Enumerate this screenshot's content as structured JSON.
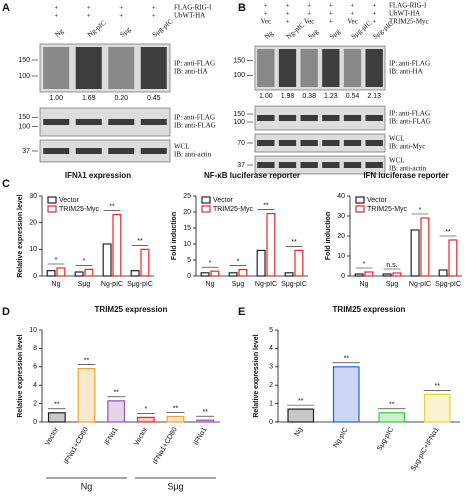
{
  "panel_a": {
    "letter": "A",
    "rows": [
      {
        "label": "FLAG-RIG-I",
        "marks": [
          "+",
          "+",
          "+",
          "+"
        ]
      },
      {
        "label": "UbWT-HA",
        "marks": [
          "+",
          "+",
          "+",
          "+"
        ]
      }
    ],
    "lanes": [
      "Ng",
      "Ng-pIC",
      "Sμg",
      "Sμg-pIC"
    ],
    "blots": [
      {
        "mw": [
          150,
          100
        ],
        "labels": [
          "IP: anti-FLAG",
          "IB: anti-HA"
        ],
        "quant": [
          "1.00",
          "1.69",
          "0.20",
          "0.45"
        ]
      },
      {
        "mw": [
          150,
          100
        ],
        "labels": [
          "IP: anti-FLAG",
          "IB: anti-FLAG"
        ]
      },
      {
        "mw": [
          37
        ],
        "labels": [
          "WCL",
          "IB: anti-actin"
        ]
      }
    ]
  },
  "panel_b": {
    "letter": "B",
    "rows": [
      {
        "label": "FLAG-RIG-I",
        "marks": [
          "+",
          "+",
          "+",
          "+",
          "+",
          "+"
        ]
      },
      {
        "label": "UbWT-HA",
        "marks": [
          "+",
          "+",
          "+",
          "+",
          "+",
          "+"
        ]
      },
      {
        "label": "TRIM25-Myc",
        "marks": [
          "Vec",
          "+",
          "Vec",
          "+",
          "Vec",
          "+"
        ]
      }
    ],
    "lanes": [
      "Ng",
      "Ng-pIC",
      "Sμg",
      "Sμg",
      "Sμg-pIC",
      "Sμg-pIC"
    ],
    "blots": [
      {
        "mw": [
          150,
          100
        ],
        "labels": [
          "IP: anti-FLAG",
          "IB: anti-HA"
        ],
        "quant": [
          "1.00",
          "1.98",
          "0.38",
          "1.23",
          "0.54",
          "2.13"
        ]
      },
      {
        "mw": [
          150,
          100
        ],
        "labels": [
          "IP: anti-FLAG",
          "IB: anti-FLAG"
        ]
      },
      {
        "mw": [
          70
        ],
        "labels": [
          "WCL",
          "IB: anti-Myc"
        ]
      },
      {
        "mw": [
          37
        ],
        "labels": [
          "WCL",
          "IB: anti-actin"
        ]
      }
    ]
  },
  "letters": [
    "C",
    "D",
    "E"
  ],
  "chart_data": [
    {
      "type": "bar",
      "title": "IFNλ1 expression",
      "y_label": "Relative expression level",
      "categories": [
        "Ng",
        "Sμg",
        "Ng-pIC",
        "Sμg-pIC"
      ],
      "series": [
        {
          "name": "Vector",
          "color": "#222222",
          "values": [
            2,
            1.5,
            12,
            2
          ]
        },
        {
          "name": "TRIM25-Myc",
          "color": "#e8262b",
          "values": [
            3,
            2.5,
            23,
            10
          ]
        }
      ],
      "significance": [
        "*",
        "*",
        "**",
        "**"
      ],
      "ylim": [
        0,
        30
      ],
      "yticks": [
        0,
        10,
        20,
        30
      ]
    },
    {
      "type": "bar",
      "title": "NF-κB luciferase reporter",
      "y_label": "Fold induction",
      "categories": [
        "Ng",
        "Sμg",
        "Ng-pIC",
        "Sμg-pIC"
      ],
      "series": [
        {
          "name": "Vector",
          "color": "#222222",
          "values": [
            1,
            1,
            8,
            1
          ]
        },
        {
          "name": "TRIM25-Myc",
          "color": "#e8262b",
          "values": [
            1.5,
            2,
            19.5,
            8
          ]
        }
      ],
      "significance": [
        "*",
        "*",
        "**",
        "**"
      ],
      "ylim": [
        0,
        25
      ],
      "yticks": [
        0,
        5,
        10,
        15,
        20,
        25
      ]
    },
    {
      "type": "bar",
      "title": "IFN luciferase reporter",
      "y_label": "Fold induction",
      "categories": [
        "Ng",
        "Sμg",
        "Ng-pIC",
        "Sμg-pIC"
      ],
      "series": [
        {
          "name": "Vector",
          "color": "#222222",
          "values": [
            1,
            1,
            23,
            3
          ]
        },
        {
          "name": "TRIM25-Myc",
          "color": "#e8262b",
          "values": [
            2,
            1.5,
            29,
            18
          ]
        }
      ],
      "significance": [
        "*",
        "n.s.",
        "*",
        "**"
      ],
      "ylim": [
        0,
        40
      ],
      "yticks": [
        0,
        10,
        20,
        30,
        40
      ]
    },
    {
      "type": "bar",
      "title": "TRIM25 expression",
      "y_label": "Relative expression level",
      "categories": [
        "Vector",
        "IFNα1+CD80",
        "IFNα1",
        "Vector",
        "IFNα1+CD80",
        "IFNα1"
      ],
      "group_labels": [
        "Ng",
        "Sμg"
      ],
      "values": [
        1,
        5.8,
        2.3,
        0.5,
        0.6,
        0.2
      ],
      "colors": [
        "#222222",
        "#e8a33a",
        "#9b4fb5",
        "#e8262b",
        "#e8a33a",
        "#9b4fb5"
      ],
      "significance": [
        "**",
        "**",
        "**",
        "*",
        "**",
        "**"
      ],
      "ylim": [
        0,
        10
      ],
      "yticks": [
        0,
        2,
        4,
        6,
        8,
        10
      ]
    },
    {
      "type": "bar",
      "title": "TRIM25 expression",
      "y_label": "Relative expression level",
      "categories": [
        "Ng",
        "Ng-pIC",
        "Sμg-pIC",
        "Sμg-pIC+IFNα1"
      ],
      "values": [
        0.7,
        3.0,
        0.5,
        1.5
      ],
      "colors": [
        "#222222",
        "#2f5fd0",
        "#3cc43c",
        "#e6d43a"
      ],
      "significance": [
        "**",
        "**",
        "**",
        "**"
      ],
      "ylim": [
        0,
        5
      ],
      "yticks": [
        0,
        1,
        2,
        3,
        4,
        5
      ]
    }
  ]
}
